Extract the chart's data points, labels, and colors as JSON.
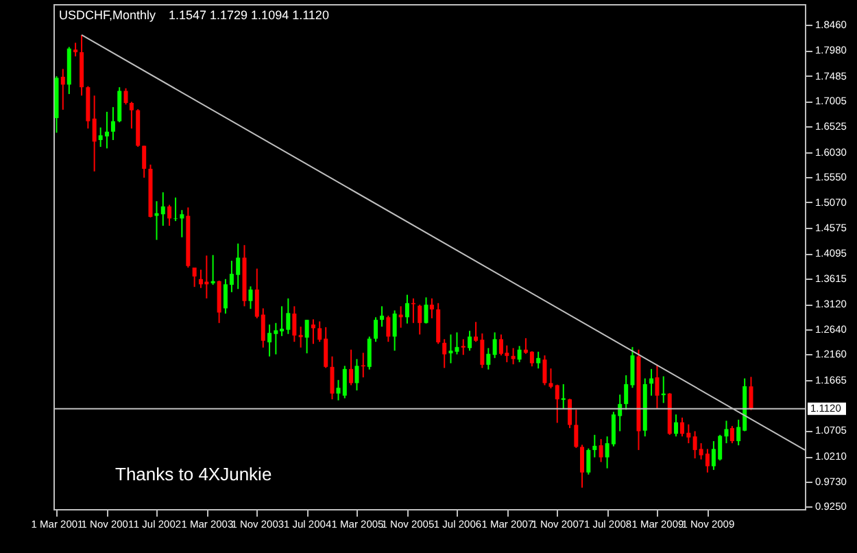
{
  "chart_data": {
    "type": "candlestick",
    "title": "USDCHF,Monthly",
    "subtitle": "1.1547 1.1729 1.1094 1.1120",
    "annotations": [
      "Thanks to 4XJunkie"
    ],
    "xlim": [
      "2001-02-14",
      "2011-02-18"
    ],
    "ylim": [
      0.92,
      1.886
    ],
    "xticks": [
      {
        "value": "2001-03",
        "label": "1 Mar 2001"
      },
      {
        "value": "2001-11",
        "label": "1 Nov 2001"
      },
      {
        "value": "2002-07",
        "label": "1 Jul 2002"
      },
      {
        "value": "2003-03",
        "label": "1 Mar 2003"
      },
      {
        "value": "2003-11",
        "label": "1 Nov 2003"
      },
      {
        "value": "2004-07",
        "label": "1 Jul 2004"
      },
      {
        "value": "2005-03",
        "label": "1 Mar 2005"
      },
      {
        "value": "2005-11",
        "label": "1 Nov 2005"
      },
      {
        "value": "2006-07",
        "label": "1 Jul 2006"
      },
      {
        "value": "2007-03",
        "label": "1 Mar 2007"
      },
      {
        "value": "2007-11",
        "label": "1 Nov 2007"
      },
      {
        "value": "2008-07",
        "label": "1 Jul 2008"
      },
      {
        "value": "2009-03",
        "label": "1 Mar 2009"
      },
      {
        "value": "2009-11",
        "label": "1 Nov 2009"
      }
    ],
    "yticks": [
      {
        "value": 1.846,
        "label": "1.8460"
      },
      {
        "value": 1.798,
        "label": "1.7980"
      },
      1.7485,
      1.7005,
      1.6525,
      {
        "value": 1.603,
        "label": "1.6030"
      },
      {
        "value": 1.555,
        "label": "1.5550"
      },
      {
        "value": 1.507,
        "label": "1.5070"
      },
      1.4575,
      1.4095,
      1.3615,
      {
        "value": 1.312,
        "label": "1.3120"
      },
      {
        "value": 1.264,
        "label": "1.2640"
      },
      {
        "value": 1.216,
        "label": "1.2160"
      },
      1.1665,
      1.0705,
      {
        "value": 1.021,
        "label": "1.0210"
      },
      {
        "value": 0.973,
        "label": "0.9730"
      },
      {
        "value": 0.925,
        "label": "0.9250"
      }
    ],
    "ref_lines": [
      {
        "axis": "y",
        "value": 1.112,
        "label": "1.1120",
        "color": "#c0c0c0"
      }
    ],
    "series": [
      {
        "type": "candlestick",
        "x": [
          "2001-03",
          "2001-04",
          "2001-05",
          "2001-06",
          "2001-07",
          "2001-08",
          "2001-09",
          "2001-10",
          "2001-11",
          "2001-12",
          "2002-01",
          "2002-02",
          "2002-03",
          "2002-04",
          "2002-05",
          "2002-06",
          "2002-07",
          "2002-08",
          "2002-09",
          "2002-10",
          "2002-11",
          "2002-12",
          "2003-01",
          "2003-02",
          "2003-03",
          "2003-04",
          "2003-05",
          "2003-06",
          "2003-07",
          "2003-08",
          "2003-09",
          "2003-10",
          "2003-11",
          "2003-12",
          "2004-01",
          "2004-02",
          "2004-03",
          "2004-04",
          "2004-05",
          "2004-06",
          "2004-07",
          "2004-08",
          "2004-09",
          "2004-10",
          "2004-11",
          "2004-12",
          "2005-01",
          "2005-02",
          "2005-03",
          "2005-04",
          "2005-05",
          "2005-06",
          "2005-07",
          "2005-08",
          "2005-09",
          "2005-10",
          "2005-11",
          "2005-12",
          "2006-01",
          "2006-02",
          "2006-03",
          "2006-04",
          "2006-05",
          "2006-06",
          "2006-07",
          "2006-08",
          "2006-09",
          "2006-10",
          "2006-11",
          "2006-12",
          "2007-01",
          "2007-02",
          "2007-03",
          "2007-04",
          "2007-05",
          "2007-06",
          "2007-07",
          "2007-08",
          "2007-09",
          "2007-10",
          "2007-11",
          "2007-12",
          "2008-01",
          "2008-02",
          "2008-03",
          "2008-04",
          "2008-05",
          "2008-06",
          "2008-07",
          "2008-08",
          "2008-09",
          "2008-10",
          "2008-11",
          "2008-12",
          "2009-01",
          "2009-02",
          "2009-03",
          "2009-04",
          "2009-05",
          "2009-06",
          "2009-07",
          "2009-08",
          "2009-09",
          "2009-10",
          "2009-11",
          "2009-12",
          "2010-01",
          "2010-02",
          "2010-03",
          "2010-04",
          "2010-05",
          "2010-06"
        ],
        "ohlc": [
          [
            1.668,
            1.748,
            1.64,
            1.745
          ],
          [
            1.747,
            1.762,
            1.684,
            1.732
          ],
          [
            1.732,
            1.804,
            1.714,
            1.801
          ],
          [
            1.799,
            1.812,
            1.786,
            1.794
          ],
          [
            1.794,
            1.827,
            1.711,
            1.727
          ],
          [
            1.727,
            1.729,
            1.648,
            1.662
          ],
          [
            1.667,
            1.711,
            1.566,
            1.623
          ],
          [
            1.626,
            1.65,
            1.613,
            1.635
          ],
          [
            1.633,
            1.68,
            1.61,
            1.642
          ],
          [
            1.642,
            1.689,
            1.626,
            1.662
          ],
          [
            1.662,
            1.727,
            1.66,
            1.72
          ],
          [
            1.72,
            1.725,
            1.694,
            1.697
          ],
          [
            1.697,
            1.699,
            1.648,
            1.683
          ],
          [
            1.683,
            1.685,
            1.613,
            1.615
          ],
          [
            1.615,
            1.615,
            1.554,
            1.571
          ],
          [
            1.571,
            1.579,
            1.478,
            1.479
          ],
          [
            1.481,
            1.509,
            1.435,
            1.486
          ],
          [
            1.484,
            1.526,
            1.462,
            1.499
          ],
          [
            1.499,
            1.502,
            1.462,
            1.476
          ],
          [
            1.475,
            1.516,
            1.471,
            1.476
          ],
          [
            1.476,
            1.492,
            1.44,
            1.484
          ],
          [
            1.481,
            1.497,
            1.382,
            1.385
          ],
          [
            1.382,
            1.382,
            1.345,
            1.365
          ],
          [
            1.36,
            1.378,
            1.343,
            1.35
          ],
          [
            1.355,
            1.405,
            1.323,
            1.35
          ],
          [
            1.352,
            1.406,
            1.349,
            1.356
          ],
          [
            1.356,
            1.357,
            1.276,
            1.296
          ],
          [
            1.304,
            1.36,
            1.294,
            1.35
          ],
          [
            1.349,
            1.395,
            1.335,
            1.37
          ],
          [
            1.368,
            1.428,
            1.341,
            1.401
          ],
          [
            1.401,
            1.425,
            1.308,
            1.318
          ],
          [
            1.318,
            1.346,
            1.303,
            1.34
          ],
          [
            1.34,
            1.38,
            1.285,
            1.288
          ],
          [
            1.292,
            1.304,
            1.229,
            1.242
          ],
          [
            1.239,
            1.273,
            1.212,
            1.257
          ],
          [
            1.255,
            1.276,
            1.216,
            1.262
          ],
          [
            1.26,
            1.308,
            1.251,
            1.265
          ],
          [
            1.263,
            1.323,
            1.255,
            1.295
          ],
          [
            1.294,
            1.308,
            1.24,
            1.252
          ],
          [
            1.253,
            1.269,
            1.229,
            1.249
          ],
          [
            1.248,
            1.282,
            1.218,
            1.282
          ],
          [
            1.273,
            1.283,
            1.236,
            1.266
          ],
          [
            1.266,
            1.279,
            1.24,
            1.244
          ],
          [
            1.246,
            1.268,
            1.19,
            1.192
          ],
          [
            1.192,
            1.212,
            1.13,
            1.141
          ],
          [
            1.141,
            1.167,
            1.128,
            1.152
          ],
          [
            1.137,
            1.194,
            1.132,
            1.188
          ],
          [
            1.188,
            1.225,
            1.157,
            1.161
          ],
          [
            1.161,
            1.207,
            1.147,
            1.194
          ],
          [
            1.195,
            1.219,
            1.172,
            1.193
          ],
          [
            1.192,
            1.25,
            1.187,
            1.246
          ],
          [
            1.246,
            1.287,
            1.24,
            1.282
          ],
          [
            1.282,
            1.308,
            1.269,
            1.29
          ],
          [
            1.287,
            1.29,
            1.24,
            1.25
          ],
          [
            1.25,
            1.3,
            1.223,
            1.294
          ],
          [
            1.292,
            1.308,
            1.267,
            1.287
          ],
          [
            1.287,
            1.33,
            1.275,
            1.314
          ],
          [
            1.314,
            1.323,
            1.276,
            1.312
          ],
          [
            1.309,
            1.311,
            1.254,
            1.276
          ],
          [
            1.276,
            1.325,
            1.275,
            1.311
          ],
          [
            1.311,
            1.323,
            1.285,
            1.302
          ],
          [
            1.302,
            1.314,
            1.236,
            1.239
          ],
          [
            1.238,
            1.245,
            1.19,
            1.216
          ],
          [
            1.218,
            1.254,
            1.199,
            1.223
          ],
          [
            1.221,
            1.258,
            1.216,
            1.23
          ],
          [
            1.232,
            1.245,
            1.215,
            1.229
          ],
          [
            1.228,
            1.261,
            1.223,
            1.25
          ],
          [
            1.25,
            1.278,
            1.24,
            1.242
          ],
          [
            1.244,
            1.256,
            1.19,
            1.196
          ],
          [
            1.196,
            1.228,
            1.187,
            1.217
          ],
          [
            1.215,
            1.258,
            1.209,
            1.245
          ],
          [
            1.245,
            1.254,
            1.214,
            1.217
          ],
          [
            1.219,
            1.233,
            1.201,
            1.213
          ],
          [
            1.213,
            1.228,
            1.197,
            1.207
          ],
          [
            1.206,
            1.232,
            1.201,
            1.225
          ],
          [
            1.225,
            1.247,
            1.217,
            1.219
          ],
          [
            1.221,
            1.222,
            1.193,
            1.199
          ],
          [
            1.199,
            1.221,
            1.189,
            1.209
          ],
          [
            1.206,
            1.214,
            1.157,
            1.161
          ],
          [
            1.161,
            1.189,
            1.151,
            1.154
          ],
          [
            1.157,
            1.158,
            1.085,
            1.13
          ],
          [
            1.129,
            1.159,
            1.112,
            1.132
          ],
          [
            1.13,
            1.131,
            1.075,
            1.081
          ],
          [
            1.081,
            1.11,
            1.037,
            1.039
          ],
          [
            1.039,
            1.043,
            0.961,
            0.99
          ],
          [
            0.99,
            1.036,
            0.986,
            1.033
          ],
          [
            1.033,
            1.062,
            1.019,
            1.041
          ],
          [
            1.042,
            1.054,
            1.01,
            1.019
          ],
          [
            1.019,
            1.059,
            0.998,
            1.046
          ],
          [
            1.044,
            1.106,
            1.04,
            1.101
          ],
          [
            1.098,
            1.139,
            1.069,
            1.121
          ],
          [
            1.121,
            1.176,
            1.11,
            1.159
          ],
          [
            1.157,
            1.23,
            1.152,
            1.214
          ],
          [
            1.212,
            1.225,
            1.033,
            1.069
          ],
          [
            1.07,
            1.17,
            1.059,
            1.159
          ],
          [
            1.16,
            1.188,
            1.137,
            1.17
          ],
          [
            1.172,
            1.196,
            1.112,
            1.137
          ],
          [
            1.138,
            1.174,
            1.123,
            1.141
          ],
          [
            1.141,
            1.142,
            1.062,
            1.064
          ],
          [
            1.064,
            1.101,
            1.059,
            1.086
          ],
          [
            1.086,
            1.095,
            1.059,
            1.064
          ],
          [
            1.066,
            1.082,
            1.046,
            1.057
          ],
          [
            1.059,
            1.069,
            1.017,
            1.033
          ],
          [
            1.035,
            1.046,
            1.015,
            1.023
          ],
          [
            1.026,
            1.035,
            0.99,
            1.002
          ],
          [
            1.002,
            1.05,
            0.995,
            1.035
          ],
          [
            1.015,
            1.062,
            1.013,
            1.06
          ],
          [
            1.059,
            1.089,
            1.046,
            1.073
          ],
          [
            1.075,
            1.079,
            1.046,
            1.05
          ],
          [
            1.05,
            1.091,
            1.042,
            1.077
          ],
          [
            1.07,
            1.17,
            1.069,
            1.155
          ],
          [
            1.1547,
            1.1729,
            1.1094,
            1.112
          ]
        ],
        "colors": [
          "#00ff00",
          "#ff0000",
          "#00ff00",
          "#ff0000",
          "#ff0000",
          "#ff0000",
          "#ff0000",
          "#00ff00",
          "#00ff00",
          "#00ff00",
          "#00ff00",
          "#ff0000",
          "#ff0000",
          "#ff0000",
          "#ff0000",
          "#ff0000",
          "#00ff00",
          "#00ff00",
          "#ff0000",
          "#00ff00",
          "#00ff00",
          "#ff0000",
          "#ff0000",
          "#ff0000",
          "#ff0000",
          "#00ff00",
          "#ff0000",
          "#00ff00",
          "#00ff00",
          "#00ff00",
          "#ff0000",
          "#00ff00",
          "#ff0000",
          "#ff0000",
          "#00ff00",
          "#00ff00",
          "#00ff00",
          "#00ff00",
          "#ff0000",
          "#ff0000",
          "#00ff00",
          "#ff0000",
          "#ff0000",
          "#ff0000",
          "#ff0000",
          "#00ff00",
          "#00ff00",
          "#ff0000",
          "#00ff00",
          "#ff0000",
          "#00ff00",
          "#00ff00",
          "#00ff00",
          "#ff0000",
          "#00ff00",
          "#ff0000",
          "#00ff00",
          "#ff0000",
          "#ff0000",
          "#00ff00",
          "#ff0000",
          "#ff0000",
          "#ff0000",
          "#00ff00",
          "#00ff00",
          "#ff0000",
          "#00ff00",
          "#ff0000",
          "#ff0000",
          "#00ff00",
          "#00ff00",
          "#ff0000",
          "#ff0000",
          "#ff0000",
          "#00ff00",
          "#ff0000",
          "#ff0000",
          "#00ff00",
          "#ff0000",
          "#ff0000",
          "#ff0000",
          "#00ff00",
          "#ff0000",
          "#ff0000",
          "#ff0000",
          "#00ff00",
          "#00ff00",
          "#ff0000",
          "#00ff00",
          "#00ff00",
          "#00ff00",
          "#00ff00",
          "#00ff00",
          "#ff0000",
          "#00ff00",
          "#00ff00",
          "#ff0000",
          "#00ff00",
          "#ff0000",
          "#00ff00",
          "#ff0000",
          "#ff0000",
          "#ff0000",
          "#ff0000",
          "#ff0000",
          "#00ff00",
          "#00ff00",
          "#00ff00",
          "#ff0000",
          "#00ff00",
          "#00ff00",
          "#ff0000"
        ]
      },
      {
        "type": "line",
        "color": "#c0c0c0",
        "x": [
          "2001-07",
          "2011-02-18"
        ],
        "values": [
          1.827,
          1.033
        ]
      }
    ]
  }
}
